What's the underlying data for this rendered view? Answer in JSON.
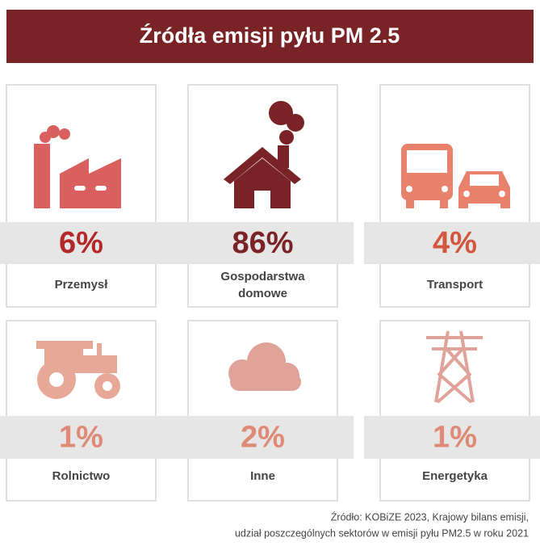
{
  "title": "Źródła emisji pyłu PM 2.5",
  "cards": [
    {
      "value": "6%",
      "label": "Przemysł",
      "color": "#b3292a"
    },
    {
      "value": "86%",
      "label": "Gospodarstwa domowe",
      "color": "#7a2326"
    },
    {
      "value": "4%",
      "label": "Transport",
      "color": "#d2573e"
    },
    {
      "value": "1%",
      "label": "Rolnictwo",
      "color": "#de8a76"
    },
    {
      "value": "2%",
      "label": "Inne",
      "color": "#de8a76"
    },
    {
      "value": "1%",
      "label": "Energetyka",
      "color": "#de8a76"
    }
  ],
  "source": [
    "Źródło: KOBiZE 2023, Krajowy bilans emisji,",
    "udział poszczególnych sektorów w emisji pyłu PM2.5 w roku 2021"
  ]
}
